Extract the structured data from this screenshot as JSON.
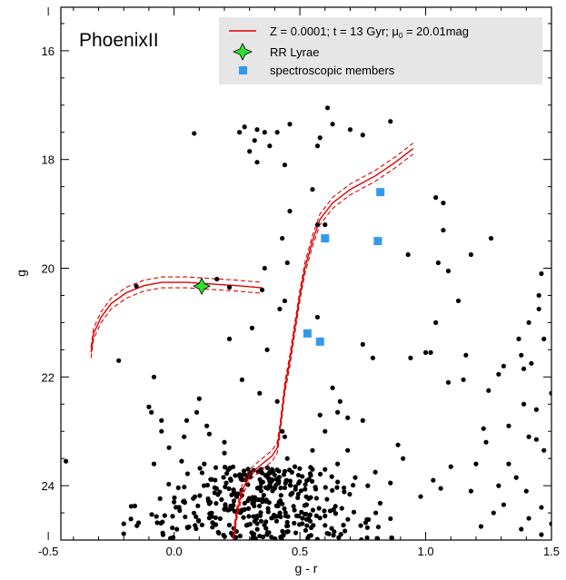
{
  "chart_data": {
    "type": "scatter",
    "title": "",
    "panel_label": "PhoenixII",
    "xlabel": "g - r",
    "ylabel": "g",
    "xlim": [
      -0.45,
      1.5
    ],
    "ylim": [
      25.0,
      15.2
    ],
    "y_inverted": true,
    "x_ticks": [
      -0.5,
      0.0,
      0.5,
      1.0,
      1.5
    ],
    "x_tick_labels": [
      "-0.5",
      "0.0",
      "0.5",
      "1.0",
      "1.5"
    ],
    "y_ticks": [
      16,
      18,
      20,
      22,
      24
    ],
    "y_tick_labels": [
      "16",
      "18",
      "20",
      "22",
      "24"
    ],
    "grid": false,
    "legend_position": "top-right",
    "legend": [
      {
        "label": "Z = 0.0001; t = 13 Gyr; μ",
        "sub": "0",
        "tail": " = 20.01mag",
        "marker": "line",
        "color": "#e00000"
      },
      {
        "label": "RR Lyrae",
        "marker": "star4",
        "color": "#33dd33"
      },
      {
        "label": "spectroscopic members",
        "marker": "square",
        "color": "#3399ee"
      }
    ],
    "series": [
      {
        "name": "Z = 0.0001; t = 13 Gyr; μ0 = 20.01mag",
        "kind": "isochrone",
        "color": "#e00000",
        "dash_offset_mag": 0.1,
        "points": [
          [
            0.23,
            25.2
          ],
          [
            0.24,
            24.8
          ],
          [
            0.25,
            24.5
          ],
          [
            0.27,
            24.1
          ],
          [
            0.3,
            23.8
          ],
          [
            0.35,
            23.6
          ],
          [
            0.39,
            23.45
          ],
          [
            0.41,
            23.3
          ],
          [
            0.42,
            23.0
          ],
          [
            0.43,
            22.6
          ],
          [
            0.44,
            22.2
          ],
          [
            0.46,
            21.7
          ],
          [
            0.48,
            21.1
          ],
          [
            0.5,
            20.5
          ],
          [
            0.52,
            20.0
          ],
          [
            0.55,
            19.5
          ],
          [
            0.58,
            19.1
          ],
          [
            0.63,
            18.8
          ],
          [
            0.7,
            18.55
          ],
          [
            0.8,
            18.3
          ],
          [
            0.88,
            18.05
          ],
          [
            0.95,
            17.8
          ]
        ]
      },
      {
        "name": "horizontal branch",
        "kind": "isochrone",
        "color": "#e00000",
        "dash_offset_mag": 0.1,
        "points": [
          [
            -0.33,
            21.55
          ],
          [
            -0.32,
            21.2
          ],
          [
            -0.29,
            20.9
          ],
          [
            -0.25,
            20.65
          ],
          [
            -0.19,
            20.45
          ],
          [
            -0.12,
            20.32
          ],
          [
            -0.05,
            20.26
          ],
          [
            0.05,
            20.26
          ],
          [
            0.15,
            20.29
          ],
          [
            0.25,
            20.32
          ],
          [
            0.35,
            20.36
          ]
        ]
      },
      {
        "name": "RR Lyrae",
        "kind": "marker",
        "marker": "star4",
        "color": "#33dd33",
        "points": [
          [
            0.11,
            20.33
          ]
        ]
      },
      {
        "name": "spectroscopic members",
        "kind": "marker",
        "marker": "square",
        "color": "#3399ee",
        "points": [
          [
            0.82,
            18.6
          ],
          [
            0.6,
            19.45
          ],
          [
            0.81,
            19.5
          ],
          [
            0.53,
            21.2
          ],
          [
            0.58,
            21.35
          ]
        ]
      },
      {
        "name": "stars",
        "kind": "marker",
        "marker": "dot",
        "color": "#000000",
        "points": [
          [
            -0.43,
            23.55
          ],
          [
            -0.15,
            20.33
          ],
          [
            -0.22,
            21.7
          ],
          [
            -0.08,
            22.0
          ],
          [
            0.22,
            21.3
          ],
          [
            -0.1,
            22.55
          ],
          [
            -0.05,
            23.0
          ],
          [
            0.08,
            17.52
          ],
          [
            0.26,
            17.5
          ],
          [
            0.28,
            17.4
          ],
          [
            0.33,
            17.45
          ],
          [
            0.36,
            17.5
          ],
          [
            0.32,
            17.65
          ],
          [
            0.38,
            17.75
          ],
          [
            0.3,
            17.85
          ],
          [
            0.33,
            18.05
          ],
          [
            0.46,
            17.35
          ],
          [
            0.41,
            17.5
          ],
          [
            0.5,
            16.45
          ],
          [
            0.57,
            17.75
          ],
          [
            0.61,
            17.05
          ],
          [
            0.63,
            17.35
          ],
          [
            0.58,
            17.6
          ],
          [
            0.7,
            17.45
          ],
          [
            0.75,
            17.55
          ],
          [
            0.86,
            17.3
          ],
          [
            0.44,
            18.1
          ],
          [
            0.46,
            18.95
          ],
          [
            0.55,
            18.55
          ],
          [
            0.57,
            19.2
          ],
          [
            0.6,
            19.2
          ],
          [
            0.43,
            19.45
          ],
          [
            0.45,
            19.9
          ],
          [
            0.36,
            20.0
          ],
          [
            0.17,
            20.2
          ],
          [
            0.22,
            20.35
          ],
          [
            0.35,
            20.4
          ],
          [
            0.44,
            20.6
          ],
          [
            0.42,
            20.75
          ],
          [
            0.57,
            20.9
          ],
          [
            0.31,
            21.1
          ],
          [
            0.37,
            21.5
          ],
          [
            0.27,
            22.05
          ],
          [
            0.34,
            22.3
          ],
          [
            0.41,
            22.45
          ],
          [
            0.43,
            23.0
          ],
          [
            0.44,
            23.1
          ],
          [
            0.63,
            22.2
          ],
          [
            0.66,
            22.45
          ],
          [
            0.65,
            22.65
          ],
          [
            0.69,
            22.75
          ],
          [
            0.75,
            22.8
          ],
          [
            0.58,
            22.7
          ],
          [
            0.6,
            23.0
          ],
          [
            0.55,
            23.35
          ],
          [
            0.79,
            21.65
          ],
          [
            0.75,
            21.4
          ],
          [
            0.94,
            21.65
          ],
          [
            0.93,
            19.75
          ],
          [
            1.04,
            18.7
          ],
          [
            1.07,
            18.8
          ],
          [
            1.07,
            19.3
          ],
          [
            1.05,
            19.9
          ],
          [
            1.09,
            20.05
          ],
          [
            1.18,
            19.75
          ],
          [
            1.26,
            19.45
          ],
          [
            1.13,
            20.6
          ],
          [
            1.04,
            21.0
          ],
          [
            1.0,
            21.55
          ],
          [
            1.02,
            21.55
          ],
          [
            1.09,
            22.1
          ],
          [
            1.16,
            21.6
          ],
          [
            1.15,
            22.05
          ],
          [
            1.25,
            22.25
          ],
          [
            1.29,
            21.95
          ],
          [
            1.31,
            21.8
          ],
          [
            1.37,
            21.3
          ],
          [
            1.38,
            21.6
          ],
          [
            1.39,
            21.85
          ],
          [
            1.42,
            21.75
          ],
          [
            1.41,
            21.0
          ],
          [
            1.45,
            20.75
          ],
          [
            1.45,
            20.5
          ],
          [
            1.46,
            20.1
          ],
          [
            1.47,
            21.3
          ],
          [
            1.5,
            22.3
          ],
          [
            1.44,
            22.6
          ],
          [
            1.39,
            22.5
          ],
          [
            1.41,
            23.1
          ],
          [
            1.44,
            23.15
          ],
          [
            1.47,
            23.35
          ],
          [
            1.33,
            22.9
          ],
          [
            1.23,
            22.95
          ],
          [
            1.24,
            23.2
          ],
          [
            1.33,
            23.6
          ],
          [
            1.36,
            23.85
          ],
          [
            1.4,
            24.1
          ],
          [
            1.29,
            24.0
          ],
          [
            1.2,
            23.6
          ],
          [
            1.18,
            24.1
          ],
          [
            1.1,
            23.65
          ],
          [
            1.06,
            24.05
          ],
          [
            1.03,
            23.9
          ],
          [
            0.98,
            24.2
          ],
          [
            0.91,
            23.5
          ],
          [
            0.89,
            23.25
          ],
          [
            0.86,
            23.95
          ],
          [
            0.8,
            23.75
          ],
          [
            0.77,
            24.0
          ],
          [
            0.72,
            23.85
          ],
          [
            0.69,
            23.35
          ],
          [
            0.65,
            23.6
          ],
          [
            0.1,
            22.4
          ],
          [
            0.09,
            22.65
          ],
          [
            0.05,
            22.8
          ],
          [
            0.04,
            23.1
          ],
          [
            0.13,
            22.9
          ],
          [
            0.14,
            23.05
          ],
          [
            0.2,
            23.2
          ],
          [
            0.2,
            23.4
          ],
          [
            -0.09,
            22.65
          ],
          [
            -0.05,
            22.8
          ],
          [
            -0.02,
            23.3
          ],
          [
            -0.08,
            23.6
          ],
          [
            1.46,
            24.4
          ],
          [
            1.41,
            24.6
          ],
          [
            1.38,
            24.8
          ],
          [
            1.46,
            24.9
          ],
          [
            1.5,
            24.7
          ],
          [
            1.27,
            24.5
          ],
          [
            1.22,
            24.75
          ],
          [
            1.31,
            24.35
          ],
          [
            0.03,
            23.55
          ],
          [
            0.12,
            23.6
          ],
          [
            0.38,
            23.75
          ],
          [
            0.48,
            23.65
          ],
          [
            0.55,
            23.7
          ],
          [
            0.6,
            23.7
          ],
          [
            0.45,
            23.5
          ]
        ]
      }
    ],
    "dense_cloud": {
      "description": "main-sequence turnoff cluster",
      "g_range": [
        23.65,
        25.0
      ],
      "gr_range": [
        -0.2,
        1.2
      ],
      "gr_peak": 0.35,
      "count": 380
    }
  }
}
